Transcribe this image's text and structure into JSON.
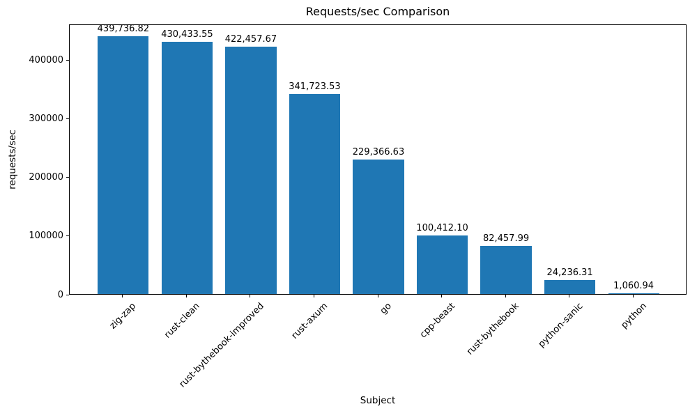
{
  "chart_data": {
    "type": "bar",
    "title": "Requests/sec Comparison",
    "xlabel": "Subject",
    "ylabel": "requests/sec",
    "categories": [
      "zig-zap",
      "rust-clean",
      "rust-bythebook-improved",
      "rust-axum",
      "go",
      "cpp-beast",
      "rust-bythebook",
      "python-sanic",
      "python"
    ],
    "values": [
      439736.82,
      430433.55,
      422457.67,
      341723.53,
      229366.63,
      100412.1,
      82457.99,
      24236.31,
      1060.94
    ],
    "value_labels": [
      "439,736.82",
      "430,433.55",
      "422,457.67",
      "341,723.53",
      "229,366.63",
      "100,412.10",
      "82,457.99",
      "24,236.31",
      "1,060.94"
    ],
    "y_ticks": [
      0,
      100000,
      200000,
      300000,
      400000
    ],
    "y_tick_labels": [
      "0",
      "100000",
      "200000",
      "300000",
      "400000"
    ],
    "ylim": [
      0,
      461723.66
    ],
    "bar_width_ratio": 0.8,
    "x_tick_rotation": 45,
    "grid": false,
    "legend": null,
    "bar_color": "#1f77b4",
    "axis_color": "#000000",
    "text_color": "#000000",
    "background_color": "#ffffff"
  }
}
